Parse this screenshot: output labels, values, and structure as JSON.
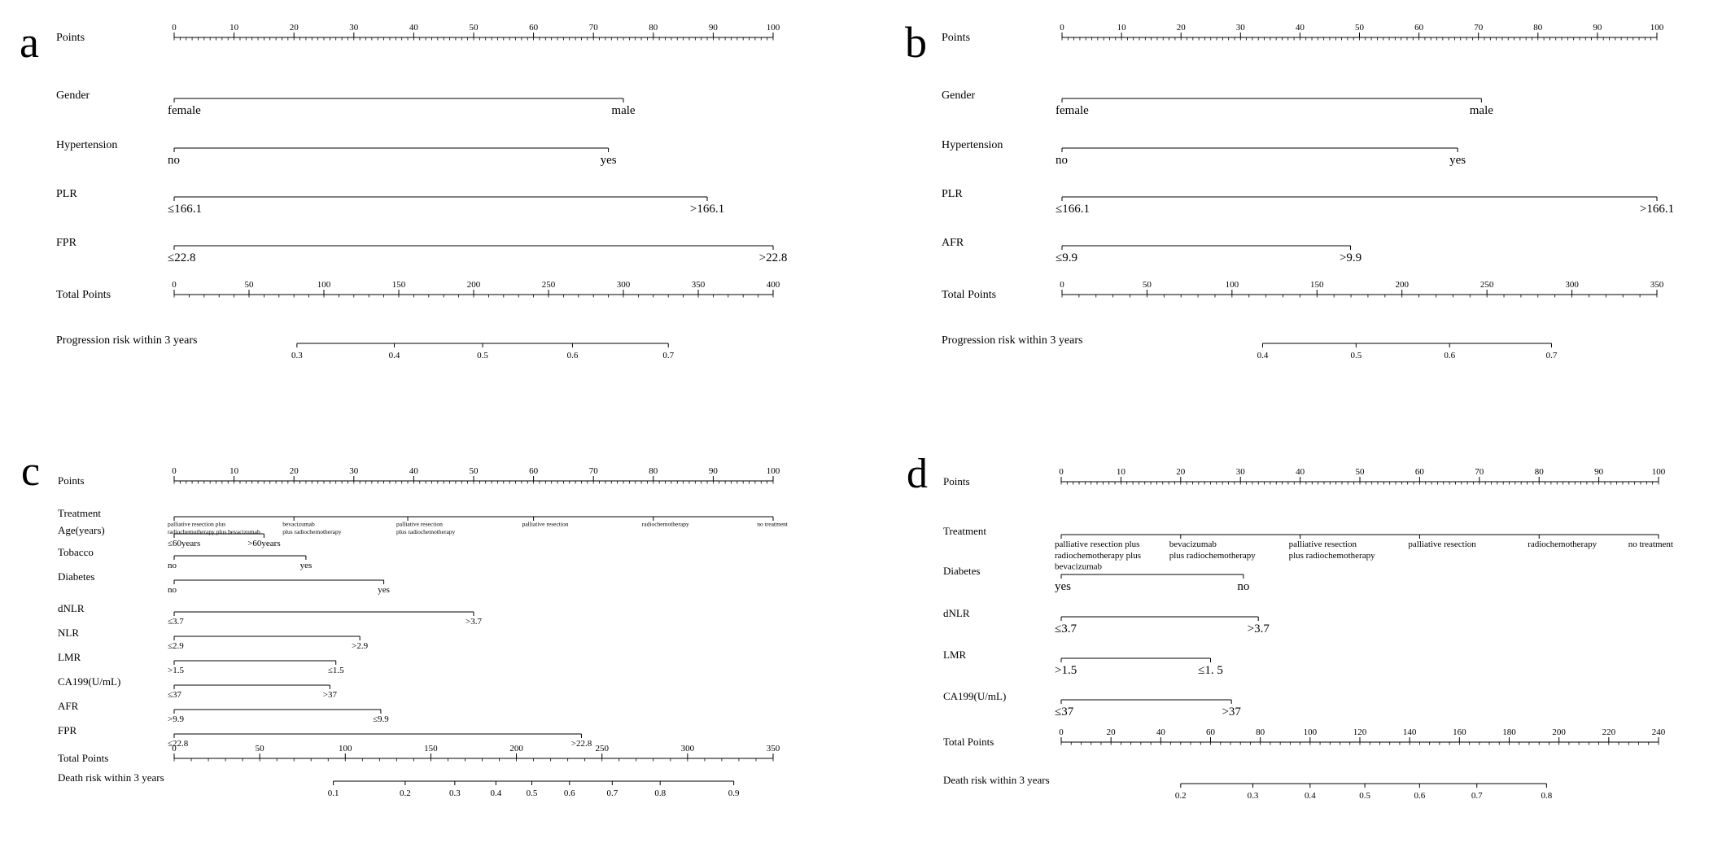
{
  "chart_data": [
    {
      "type": "nomogram",
      "panel_label": "a",
      "rows": [
        {
          "label": "Points",
          "kind": "axis",
          "min": 0,
          "max": 100,
          "major": 10,
          "minor": 1,
          "ticks": [
            "0",
            "10",
            "20",
            "30",
            "40",
            "50",
            "60",
            "70",
            "80",
            "90",
            "100"
          ]
        },
        {
          "label": "Gender",
          "kind": "var",
          "range": [
            0,
            75
          ],
          "levels": [
            {
              "text": "female",
              "points": 0
            },
            {
              "text": "male",
              "points": 75
            }
          ]
        },
        {
          "label": "Hypertension",
          "kind": "var",
          "range": [
            0,
            72.5
          ],
          "levels": [
            {
              "text": "no",
              "points": 0
            },
            {
              "text": "yes",
              "points": 72.5
            }
          ]
        },
        {
          "label": "PLR",
          "kind": "var",
          "range": [
            0,
            89
          ],
          "levels": [
            {
              "text": "≤166.1",
              "points": 0
            },
            {
              "text": ">166.1",
              "points": 89
            }
          ]
        },
        {
          "label": "FPR",
          "kind": "var",
          "range": [
            0,
            100
          ],
          "levels": [
            {
              "text": "≤22.8",
              "points": 0
            },
            {
              "text": ">22.8",
              "points": 100
            }
          ]
        },
        {
          "label": "Total Points",
          "kind": "axis",
          "min": 0,
          "max": 400,
          "major": 50,
          "minor": 10,
          "ticks": [
            "0",
            "50",
            "100",
            "150",
            "200",
            "250",
            "300",
            "350",
            "400"
          ]
        },
        {
          "label": "Progression risk within 3 years",
          "kind": "risk",
          "range": [
            82,
            330
          ],
          "ticks": [
            {
              "text": "0.3",
              "total": 82
            },
            {
              "text": "0.4",
              "total": 147
            },
            {
              "text": "0.5",
              "total": 206
            },
            {
              "text": "0.6",
              "total": 266
            },
            {
              "text": "0.7",
              "total": 330
            }
          ]
        }
      ]
    },
    {
      "type": "nomogram",
      "panel_label": "b",
      "rows": [
        {
          "label": "Points",
          "kind": "axis",
          "min": 0,
          "max": 100,
          "major": 10,
          "minor": 1,
          "ticks": [
            "0",
            "10",
            "20",
            "30",
            "40",
            "50",
            "60",
            "70",
            "80",
            "90",
            "100"
          ]
        },
        {
          "label": "Gender",
          "kind": "var",
          "range": [
            0,
            70.5
          ],
          "levels": [
            {
              "text": "female",
              "points": 0
            },
            {
              "text": "male",
              "points": 70.5
            }
          ]
        },
        {
          "label": "Hypertension",
          "kind": "var",
          "range": [
            0,
            66.5
          ],
          "levels": [
            {
              "text": "no",
              "points": 0
            },
            {
              "text": "yes",
              "points": 66.5
            }
          ]
        },
        {
          "label": "PLR",
          "kind": "var",
          "range": [
            0,
            100
          ],
          "levels": [
            {
              "text": "≤166.1",
              "points": 0
            },
            {
              "text": ">166.1",
              "points": 100
            }
          ]
        },
        {
          "label": "AFR",
          "kind": "var",
          "range": [
            0,
            48.5
          ],
          "levels": [
            {
              "text": "≤9.9",
              "points": 0
            },
            {
              "text": ">9.9",
              "points": 48.5
            }
          ]
        },
        {
          "label": "Total Points",
          "kind": "axis",
          "min": 0,
          "max": 350,
          "major": 50,
          "minor": 10,
          "ticks": [
            "0",
            "50",
            "100",
            "150",
            "200",
            "250",
            "300",
            "350"
          ]
        },
        {
          "label": "Progression risk within 3 years",
          "kind": "risk",
          "range": [
            118,
            288
          ],
          "ticks": [
            {
              "text": "0.4",
              "total": 118
            },
            {
              "text": "0.5",
              "total": 173
            },
            {
              "text": "0.6",
              "total": 228
            },
            {
              "text": "0.7",
              "total": 288
            }
          ]
        }
      ]
    },
    {
      "type": "nomogram",
      "panel_label": "c",
      "rows": [
        {
          "label": "Points",
          "kind": "axis",
          "min": 0,
          "max": 100,
          "major": 10,
          "minor": 1,
          "ticks": [
            "0",
            "10",
            "20",
            "30",
            "40",
            "50",
            "60",
            "70",
            "80",
            "90",
            "100"
          ]
        },
        {
          "label": "Treatment",
          "kind": "var",
          "range": [
            0,
            100
          ],
          "levels": [
            {
              "text": "palliative resection plus\nradiochemotherapy plus bevacizumab",
              "points": 0
            },
            {
              "text": "bevacizumab\nplus radiochemotherapy",
              "points": 20
            },
            {
              "text": "palliative resection\nplus radiochemotherapy",
              "points": 39
            },
            {
              "text": "palliative resection",
              "points": 60
            },
            {
              "text": "radiochemotherapy",
              "points": 80
            },
            {
              "text": "no treatment",
              "points": 100
            }
          ]
        },
        {
          "label": "Age(years)",
          "kind": "var",
          "range": [
            0,
            15
          ],
          "levels": [
            {
              "text": "≤60years",
              "points": 0
            },
            {
              "text": ">60years",
              "points": 15
            }
          ]
        },
        {
          "label": "Tobacco",
          "kind": "var",
          "range": [
            0,
            22
          ],
          "levels": [
            {
              "text": "no",
              "points": 0
            },
            {
              "text": "yes",
              "points": 22
            }
          ]
        },
        {
          "label": "Diabetes",
          "kind": "var",
          "range": [
            0,
            35
          ],
          "levels": [
            {
              "text": "no",
              "points": 0
            },
            {
              "text": "yes",
              "points": 35
            }
          ]
        },
        {
          "label": "dNLR",
          "kind": "var",
          "range": [
            0,
            50
          ],
          "levels": [
            {
              "text": "≤3.7",
              "points": 0
            },
            {
              "text": ">3.7",
              "points": 50
            }
          ]
        },
        {
          "label": "NLR",
          "kind": "var",
          "range": [
            0,
            31
          ],
          "levels": [
            {
              "text": "≤2.9",
              "points": 0
            },
            {
              "text": ">2.9",
              "points": 31
            }
          ]
        },
        {
          "label": "LMR",
          "kind": "var",
          "range": [
            0,
            27
          ],
          "levels": [
            {
              "text": ">1.5",
              "points": 0
            },
            {
              "text": "≤1.5",
              "points": 27
            }
          ]
        },
        {
          "label": "CA199(U/mL)",
          "kind": "var",
          "range": [
            0,
            26
          ],
          "levels": [
            {
              "text": "≤37",
              "points": 0
            },
            {
              "text": ">37",
              "points": 26
            }
          ]
        },
        {
          "label": "AFR",
          "kind": "var",
          "range": [
            0,
            34.5
          ],
          "levels": [
            {
              "text": ">9.9",
              "points": 0
            },
            {
              "text": "≤9.9",
              "points": 34.5
            }
          ]
        },
        {
          "label": "FPR",
          "kind": "var",
          "range": [
            0,
            68
          ],
          "levels": [
            {
              "text": "≤22.8",
              "points": 0
            },
            {
              "text": ">22.8",
              "points": 68
            }
          ]
        },
        {
          "label": "Total Points",
          "kind": "axis",
          "min": 0,
          "max": 350,
          "major": 50,
          "minor": 10,
          "ticks": [
            "0",
            "50",
            "100",
            "150",
            "200",
            "250",
            "300",
            "350"
          ]
        },
        {
          "label": "Death risk within 3 years",
          "kind": "risk",
          "range": [
            93,
            327
          ],
          "ticks": [
            {
              "text": "0.1",
              "total": 93
            },
            {
              "text": "0.2",
              "total": 135
            },
            {
              "text": "0.3",
              "total": 164
            },
            {
              "text": "0.4",
              "total": 188
            },
            {
              "text": "0.5",
              "total": 209
            },
            {
              "text": "0.6",
              "total": 231
            },
            {
              "text": "0.7",
              "total": 256
            },
            {
              "text": "0.8",
              "total": 284
            },
            {
              "text": "0.9",
              "total": 327
            }
          ]
        }
      ]
    },
    {
      "type": "nomogram",
      "panel_label": "d",
      "rows": [
        {
          "label": "Points",
          "kind": "axis",
          "min": 0,
          "max": 100,
          "major": 10,
          "minor": 1,
          "ticks": [
            "0",
            "10",
            "20",
            "30",
            "40",
            "50",
            "60",
            "70",
            "80",
            "90",
            "100"
          ]
        },
        {
          "label": "Treatment",
          "kind": "var",
          "range": [
            0,
            100
          ],
          "levels": [
            {
              "text": "palliative resection plus\nradiochemotherapy plus\nbevacizumab",
              "points": 0
            },
            {
              "text": "bevacizumab\nplus radiochemotherapy",
              "points": 20
            },
            {
              "text": "palliative resection\nplus radiochemotherapy",
              "points": 40
            },
            {
              "text": "palliative resection",
              "points": 60
            },
            {
              "text": "radiochemotherapy",
              "points": 80
            },
            {
              "text": "no treatment",
              "points": 100
            }
          ]
        },
        {
          "label": "Diabetes",
          "kind": "var",
          "range": [
            0,
            30.5
          ],
          "levels": [
            {
              "text": "yes",
              "points": 0
            },
            {
              "text": "no",
              "points": 30.5
            }
          ]
        },
        {
          "label": "dNLR",
          "kind": "var",
          "range": [
            0,
            33
          ],
          "levels": [
            {
              "text": "≤3.7",
              "points": 0
            },
            {
              "text": ">3.7",
              "points": 33
            }
          ]
        },
        {
          "label": "LMR",
          "kind": "var",
          "range": [
            0,
            25
          ],
          "levels": [
            {
              "text": ">1.5",
              "points": 0
            },
            {
              "text": "≤1. 5",
              "points": 25
            }
          ]
        },
        {
          "label": "CA199(U/mL)",
          "kind": "var",
          "range": [
            0,
            28.5
          ],
          "levels": [
            {
              "text": "≤37",
              "points": 0
            },
            {
              "text": ">37",
              "points": 28.5
            }
          ]
        },
        {
          "label": "Total Points",
          "kind": "axis",
          "min": 0,
          "max": 240,
          "major": 20,
          "minor": 4,
          "ticks": [
            "0",
            "20",
            "40",
            "60",
            "80",
            "100",
            "120",
            "140",
            "160",
            "180",
            "200",
            "220",
            "240"
          ]
        },
        {
          "label": "Death risk within 3 years",
          "kind": "risk",
          "range": [
            48,
            195
          ],
          "ticks": [
            {
              "text": "0.2",
              "total": 48
            },
            {
              "text": "0.3",
              "total": 77
            },
            {
              "text": "0.4",
              "total": 100
            },
            {
              "text": "0.5",
              "total": 122
            },
            {
              "text": "0.6",
              "total": 144
            },
            {
              "text": "0.7",
              "total": 167
            },
            {
              "text": "0.8",
              "total": 195
            }
          ]
        }
      ]
    }
  ]
}
